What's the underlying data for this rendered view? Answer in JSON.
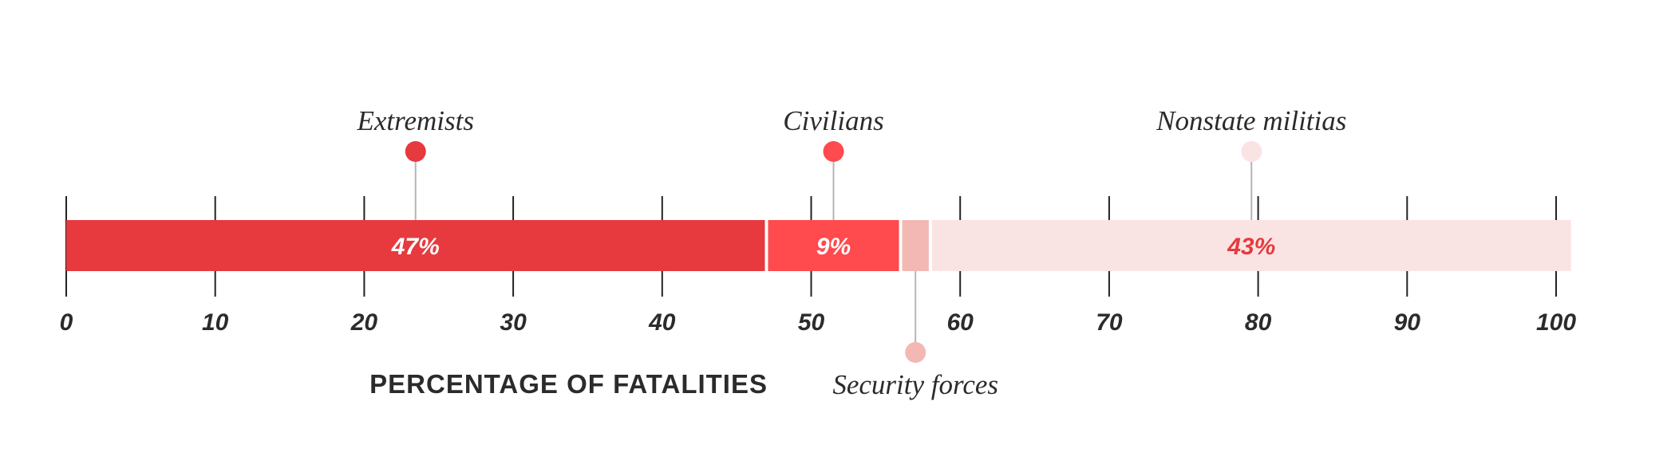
{
  "chart_data": {
    "type": "bar",
    "orientation": "horizontal-stacked",
    "xlabel": "PERCENTAGE OF FATALITIES",
    "xlim": [
      0,
      100
    ],
    "ticks": [
      0,
      10,
      20,
      30,
      40,
      50,
      60,
      70,
      80,
      90,
      100
    ],
    "grid": false,
    "series": [
      {
        "name": "Extremists",
        "value": 47,
        "label": "47%",
        "color": "#e63a3e",
        "label_color": "#ffffff",
        "marker_color": "#e63a3e",
        "callout": "above"
      },
      {
        "name": "Civilians",
        "value": 9,
        "label": "9%",
        "color": "#ff4a4e",
        "label_color": "#ffffff",
        "marker_color": "#ff4a4e",
        "callout": "above"
      },
      {
        "name": "Security forces",
        "value": 2,
        "label": "",
        "color": "#f3b8b3",
        "label_color": "#e63a3e",
        "marker_color": "#f3b8b3",
        "callout": "below"
      },
      {
        "name": "Nonstate militias",
        "value": 43,
        "label": "43%",
        "color": "#fae4e3",
        "label_color": "#e63a3e",
        "marker_color": "#fae4e3",
        "callout": "above"
      }
    ]
  }
}
